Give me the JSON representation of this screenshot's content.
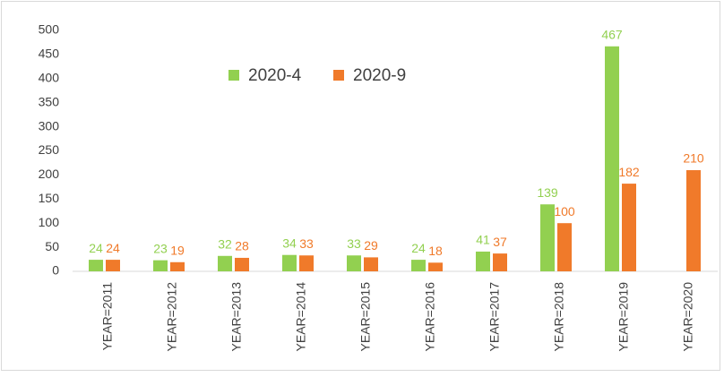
{
  "chart_data": {
    "type": "bar",
    "categories": [
      "YEAR=2011",
      "YEAR=2012",
      "YEAR=2013",
      "YEAR=2014",
      "YEAR=2015",
      "YEAR=2016",
      "YEAR=2017",
      "YEAR=2018",
      "YEAR=2019",
      "YEAR=2020"
    ],
    "series": [
      {
        "name": "2020-4",
        "color": "#92d050",
        "values": [
          24,
          23,
          32,
          34,
          33,
          24,
          41,
          139,
          467,
          null
        ]
      },
      {
        "name": "2020-9",
        "color": "#f07a2a",
        "values": [
          24,
          19,
          28,
          33,
          29,
          18,
          37,
          100,
          182,
          210
        ]
      }
    ],
    "ylim": [
      0,
      500
    ],
    "yticks": [
      0,
      50,
      100,
      150,
      200,
      250,
      300,
      350,
      400,
      450,
      500
    ],
    "grid": false,
    "legend": "top"
  }
}
